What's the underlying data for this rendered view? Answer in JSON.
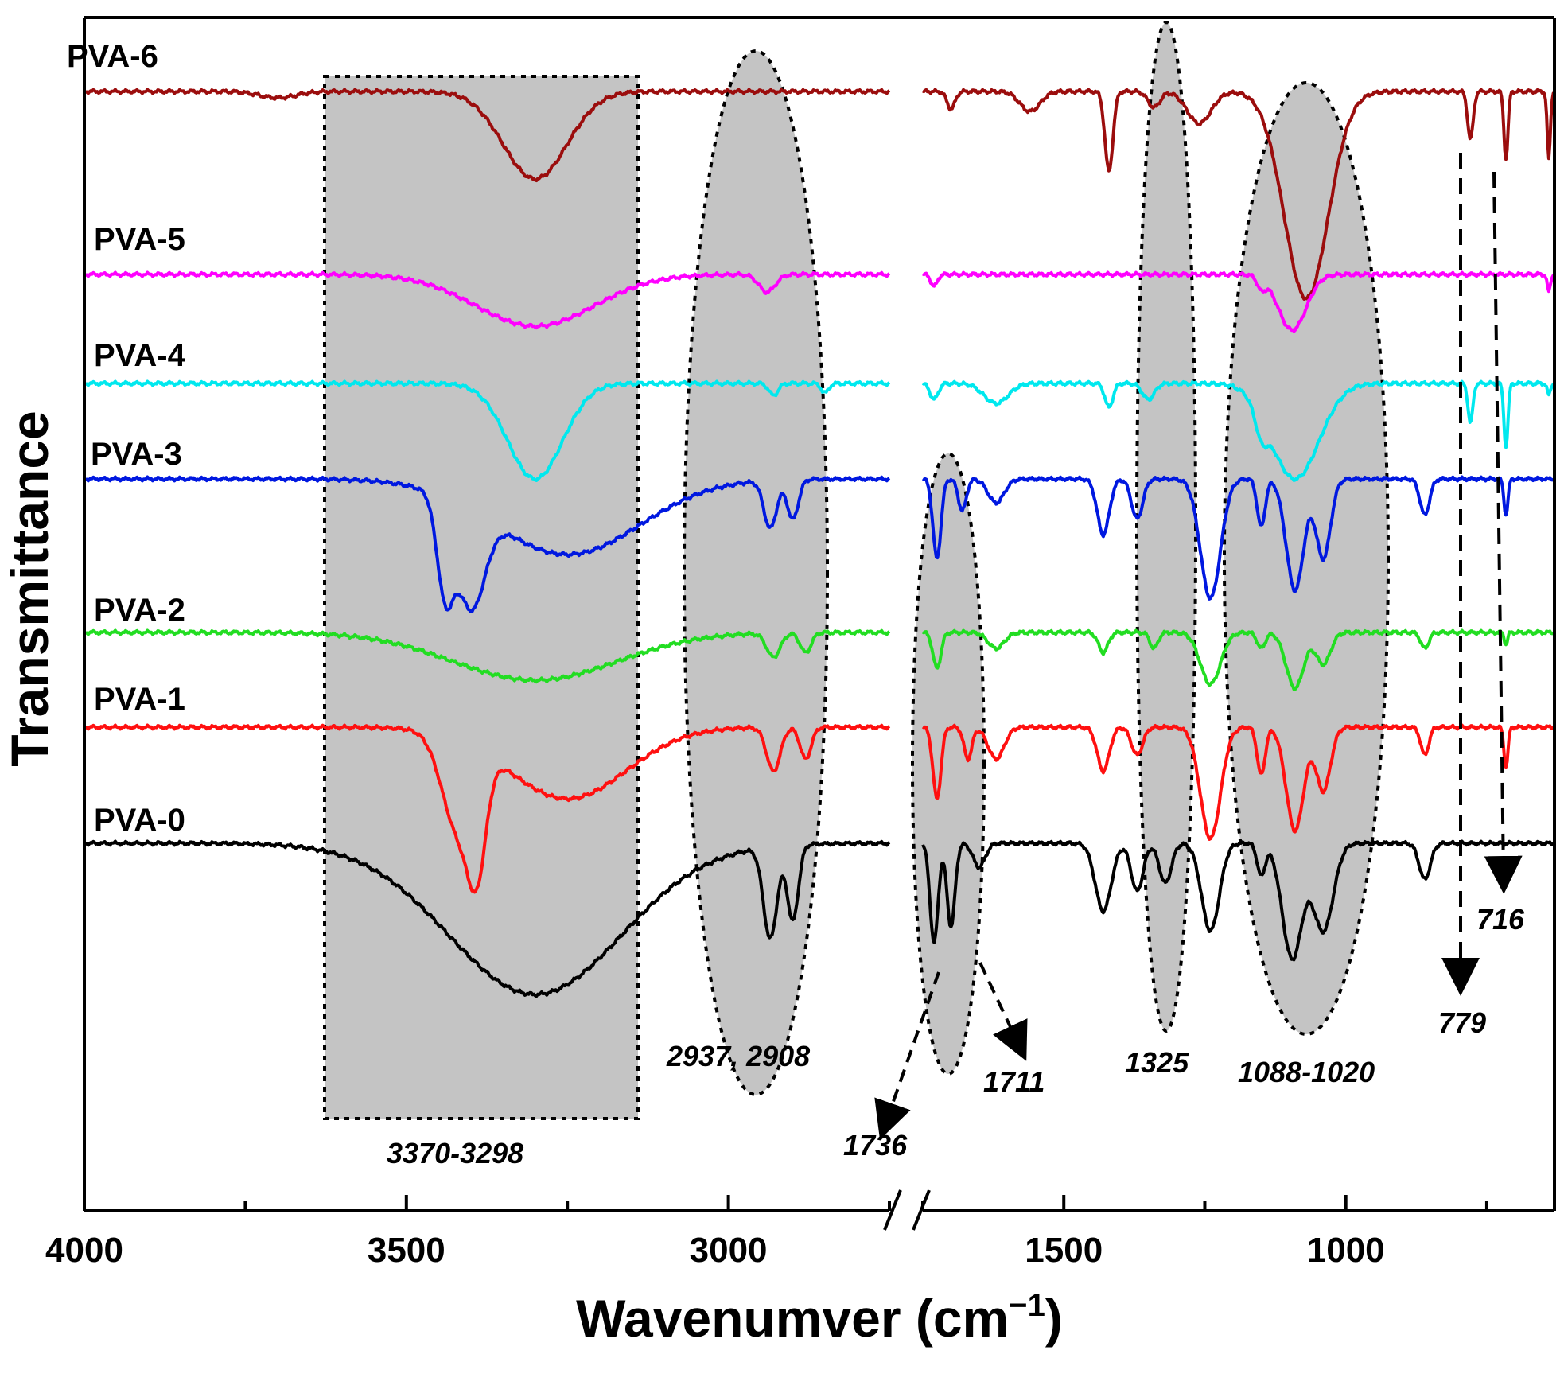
{
  "chart_data": {
    "type": "line",
    "title": "",
    "xlabel": "Wavenumver (cm",
    "xlabel_sup": "−1",
    "xlabel_end": ")",
    "ylabel": "Transmittance",
    "x_segments": [
      [
        4000,
        2750
      ],
      [
        1750,
        630
      ]
    ],
    "xticks": [
      4000,
      3500,
      3000,
      1500,
      1000
    ],
    "x_minor_ticks": [
      3750,
      3250,
      2750,
      1750,
      1250,
      750
    ],
    "series": [
      {
        "name": "PVA-6",
        "color": "#9b0d0d"
      },
      {
        "name": "PVA-5",
        "color": "#ff00ff"
      },
      {
        "name": "PVA-4",
        "color": "#00e8ee"
      },
      {
        "name": "PVA-3",
        "color": "#0018e0"
      },
      {
        "name": "PVA-2",
        "color": "#22dd22"
      },
      {
        "name": "PVA-1",
        "color": "#ff1010"
      },
      {
        "name": "PVA-0",
        "color": "#000000"
      }
    ],
    "highlight_regions": [
      {
        "label": "3370-3298",
        "shape": "rect",
        "x_range": [
          3620,
          3110
        ]
      },
      {
        "label": "2937, 2908",
        "shape": "ellipse",
        "x_center": 2920
      },
      {
        "label": "1736",
        "shape": "ellipse",
        "x_center": 1710
      },
      {
        "label": "1711",
        "shape": "ellipse",
        "x_center": 1710
      },
      {
        "label": "1325",
        "shape": "ellipse",
        "x_center": 1325
      },
      {
        "label": "1088-1020",
        "shape": "ellipse",
        "x_center": 1050
      }
    ],
    "annotations": [
      "3370-3298",
      "2937, 2908",
      "1736",
      "1711",
      "1325",
      "1088-1020",
      "779",
      "716"
    ]
  }
}
